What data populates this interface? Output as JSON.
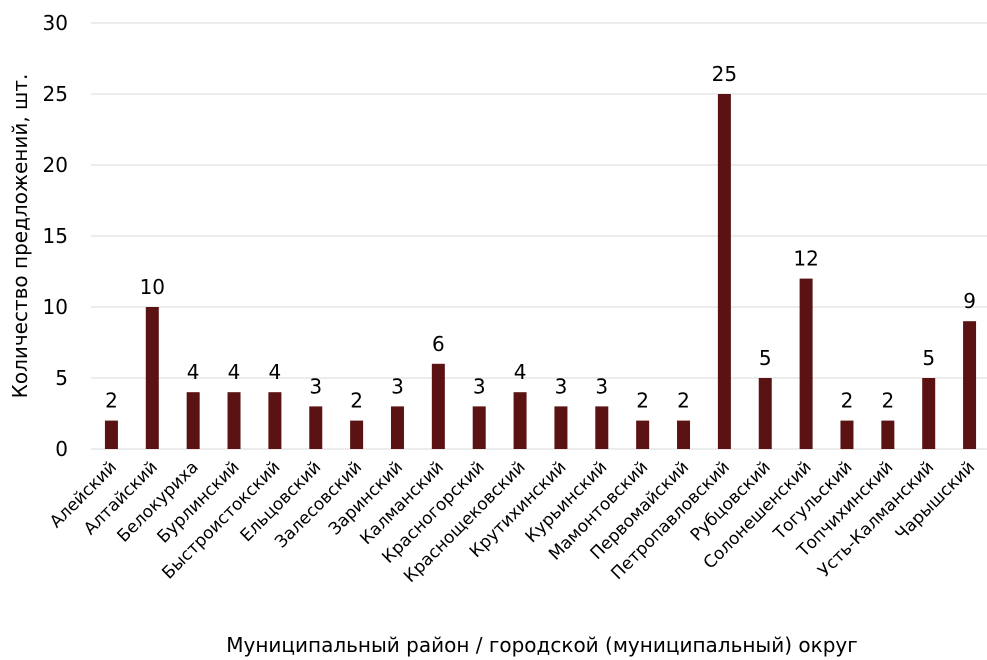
{
  "chart_data": {
    "type": "bar",
    "title": "",
    "xlabel": "Муниципальный район / городской (муниципальный) округ",
    "ylabel": "Количество предложений, шт.",
    "ylim": [
      0,
      30
    ],
    "yticks": [
      0,
      5,
      10,
      15,
      20,
      25,
      30
    ],
    "grid": true,
    "legend": "none",
    "bar_color": "#5a1212",
    "categories": [
      "Алейский",
      "Алтайский",
      "Белокуриха",
      "Бурлинский",
      "Быстроистокский",
      "Ельцовский",
      "Залесовский",
      "Заринский",
      "Калманский",
      "Красногорский",
      "Краснощековский",
      "Крутихинский",
      "Курьинский",
      "Мамонтовский",
      "Первомайский",
      "Петропавловский",
      "Рубцовский",
      "Солонешенский",
      "Тогульский",
      "Топчихинский",
      "Усть-Калманский",
      "Чарышский"
    ],
    "values": [
      2,
      10,
      4,
      4,
      4,
      3,
      2,
      3,
      6,
      3,
      4,
      3,
      3,
      2,
      2,
      25,
      5,
      12,
      2,
      2,
      5,
      9
    ]
  }
}
